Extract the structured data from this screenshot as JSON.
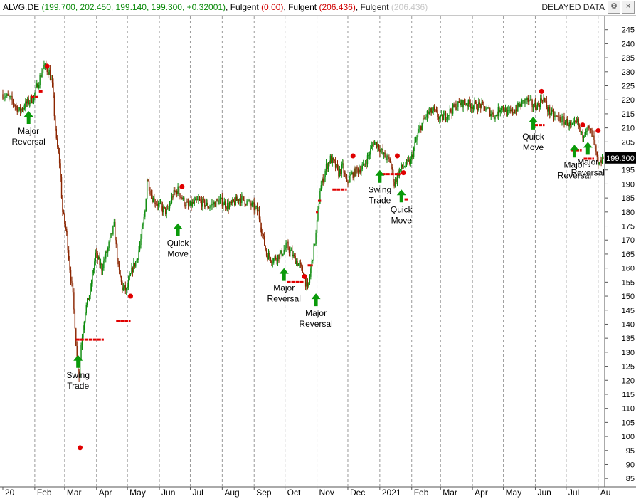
{
  "header": {
    "segments": [
      {
        "text": "ALVG.DE",
        "color": "#000000"
      },
      {
        "text": " (199.700, 202.450, 199.140, 199.300, +0.32001)",
        "color": "#0a8a0a"
      },
      {
        "text": ", Fulgent ",
        "color": "#000000"
      },
      {
        "text": "(0.00)",
        "color": "#d00000"
      },
      {
        "text": ", Fulgent ",
        "color": "#000000"
      },
      {
        "text": "(206.436)",
        "color": "#d00000"
      },
      {
        "text": ", Fulgent ",
        "color": "#000000"
      },
      {
        "text": "(206.436)",
        "color": "#c8c8c8"
      }
    ],
    "status": "DELAYED DATA",
    "settings_glyph": "⚙",
    "close_glyph": "×"
  },
  "chart_data": {
    "type": "candlestick",
    "ylim": [
      82,
      250
    ],
    "yticks": [
      85,
      90,
      95,
      100,
      105,
      110,
      115,
      120,
      125,
      130,
      135,
      140,
      145,
      150,
      155,
      160,
      165,
      170,
      175,
      180,
      185,
      190,
      195,
      200,
      205,
      210,
      215,
      220,
      225,
      230,
      235,
      240,
      245
    ],
    "last_price_label": "199.300",
    "last_price": 199.3,
    "month_labels": [
      {
        "label": "20",
        "day": 0
      },
      {
        "label": "Feb",
        "day": 31
      },
      {
        "label": "Mar",
        "day": 60
      },
      {
        "label": "Apr",
        "day": 91
      },
      {
        "label": "May",
        "day": 121
      },
      {
        "label": "Jun",
        "day": 152
      },
      {
        "label": "Jul",
        "day": 182
      },
      {
        "label": "Aug",
        "day": 213
      },
      {
        "label": "Sep",
        "day": 244
      },
      {
        "label": "Oct",
        "day": 274
      },
      {
        "label": "Nov",
        "day": 305
      },
      {
        "label": "Dec",
        "day": 335
      },
      {
        "label": "2021",
        "day": 366
      },
      {
        "label": "Feb",
        "day": 397
      },
      {
        "label": "Mar",
        "day": 425
      },
      {
        "label": "Apr",
        "day": 456
      },
      {
        "label": "May",
        "day": 486
      },
      {
        "label": "Jun",
        "day": 517
      },
      {
        "label": "Jul",
        "day": 547
      },
      {
        "label": "Au",
        "day": 578
      }
    ],
    "price_path": [
      [
        0,
        222
      ],
      [
        8,
        220
      ],
      [
        16,
        216
      ],
      [
        24,
        219
      ],
      [
        30,
        221
      ],
      [
        36,
        228
      ],
      [
        40,
        232
      ],
      [
        45,
        230
      ],
      [
        48,
        225
      ],
      [
        52,
        205
      ],
      [
        55,
        198
      ],
      [
        58,
        180
      ],
      [
        62,
        172
      ],
      [
        65,
        160
      ],
      [
        68,
        150
      ],
      [
        70,
        140
      ],
      [
        72,
        127
      ],
      [
        74,
        122
      ],
      [
        76,
        133
      ],
      [
        80,
        145
      ],
      [
        85,
        152
      ],
      [
        90,
        165
      ],
      [
        96,
        160
      ],
      [
        102,
        167
      ],
      [
        108,
        175
      ],
      [
        112,
        160
      ],
      [
        116,
        153
      ],
      [
        120,
        152
      ],
      [
        126,
        160
      ],
      [
        130,
        163
      ],
      [
        134,
        170
      ],
      [
        138,
        180
      ],
      [
        140,
        192
      ],
      [
        145,
        185
      ],
      [
        150,
        183
      ],
      [
        155,
        181
      ],
      [
        160,
        180
      ],
      [
        165,
        186
      ],
      [
        170,
        188
      ],
      [
        175,
        184
      ],
      [
        180,
        182
      ],
      [
        190,
        184
      ],
      [
        200,
        182
      ],
      [
        210,
        184
      ],
      [
        220,
        182
      ],
      [
        230,
        185
      ],
      [
        240,
        183
      ],
      [
        248,
        180
      ],
      [
        252,
        172
      ],
      [
        256,
        165
      ],
      [
        262,
        163
      ],
      [
        270,
        165
      ],
      [
        276,
        168
      ],
      [
        282,
        164
      ],
      [
        288,
        161
      ],
      [
        292,
        158
      ],
      [
        296,
        152
      ],
      [
        300,
        162
      ],
      [
        304,
        172
      ],
      [
        308,
        188
      ],
      [
        314,
        196
      ],
      [
        318,
        199
      ],
      [
        322,
        197
      ],
      [
        326,
        194
      ],
      [
        330,
        196
      ],
      [
        334,
        190
      ],
      [
        338,
        193
      ],
      [
        344,
        195
      ],
      [
        350,
        196
      ],
      [
        356,
        201
      ],
      [
        360,
        205
      ],
      [
        364,
        204
      ],
      [
        370,
        200
      ],
      [
        376,
        198
      ],
      [
        380,
        190
      ],
      [
        384,
        194
      ],
      [
        388,
        196
      ],
      [
        392,
        197
      ],
      [
        396,
        198
      ],
      [
        400,
        204
      ],
      [
        405,
        210
      ],
      [
        412,
        215
      ],
      [
        418,
        216
      ],
      [
        425,
        213
      ],
      [
        432,
        215
      ],
      [
        440,
        218
      ],
      [
        448,
        219
      ],
      [
        456,
        218
      ],
      [
        464,
        218
      ],
      [
        472,
        216
      ],
      [
        478,
        214
      ],
      [
        484,
        218
      ],
      [
        490,
        215
      ],
      [
        496,
        216
      ],
      [
        502,
        218
      ],
      [
        508,
        220
      ],
      [
        514,
        218
      ],
      [
        520,
        218
      ],
      [
        524,
        221
      ],
      [
        530,
        216
      ],
      [
        536,
        214
      ],
      [
        542,
        213
      ],
      [
        548,
        212
      ],
      [
        552,
        210
      ],
      [
        558,
        212
      ],
      [
        562,
        207
      ],
      [
        566,
        210
      ],
      [
        570,
        209
      ],
      [
        574,
        205
      ],
      [
        578,
        196
      ],
      [
        583,
        199.3
      ]
    ],
    "stop_levels": [
      {
        "x0": 27,
        "x1": 34,
        "price": 221
      },
      {
        "x0": 35,
        "x1": 39,
        "price": 223
      },
      {
        "x0": 71,
        "x1": 98,
        "price": 134.5
      },
      {
        "x0": 110,
        "x1": 124,
        "price": 141
      },
      {
        "x0": 276,
        "x1": 292,
        "price": 155
      },
      {
        "x0": 296,
        "x1": 301,
        "price": 161
      },
      {
        "x0": 304,
        "x1": 306,
        "price": 180
      },
      {
        "x0": 306,
        "x1": 309,
        "price": 184
      },
      {
        "x0": 320,
        "x1": 334,
        "price": 188
      },
      {
        "x0": 368,
        "x1": 386,
        "price": 193.5
      },
      {
        "x0": 390,
        "x1": 394,
        "price": 184.5
      },
      {
        "x0": 516,
        "x1": 526,
        "price": 211
      },
      {
        "x0": 552,
        "x1": 562,
        "price": 202
      },
      {
        "x0": 564,
        "x1": 574,
        "price": 199
      }
    ],
    "red_dots": [
      {
        "x": 43,
        "price": 232
      },
      {
        "x": 75,
        "price": 96
      },
      {
        "x": 124,
        "price": 150
      },
      {
        "x": 174,
        "price": 189
      },
      {
        "x": 293,
        "price": 157
      },
      {
        "x": 340,
        "price": 200
      },
      {
        "x": 383,
        "price": 200
      },
      {
        "x": 389,
        "price": 194
      },
      {
        "x": 523,
        "price": 223
      },
      {
        "x": 563,
        "price": 211
      },
      {
        "x": 578,
        "price": 209
      }
    ],
    "signals": [
      {
        "x": 25,
        "price": 216,
        "lines": [
          "Major",
          "Reversal"
        ]
      },
      {
        "x": 73,
        "price": 129,
        "lines": [
          "Swing",
          "Trade"
        ]
      },
      {
        "x": 170,
        "price": 176,
        "lines": [
          "Quick",
          "Move"
        ]
      },
      {
        "x": 273,
        "price": 160,
        "lines": [
          "Major",
          "Reversal"
        ]
      },
      {
        "x": 304,
        "price": 151,
        "lines": [
          "Major",
          "Reversal"
        ]
      },
      {
        "x": 366,
        "price": 195,
        "lines": [
          "Swing",
          "Trade"
        ]
      },
      {
        "x": 387,
        "price": 188,
        "lines": [
          "Quick",
          "Move"
        ]
      },
      {
        "x": 515,
        "price": 214,
        "lines": [
          "Quick",
          "Move"
        ]
      },
      {
        "x": 555,
        "price": 204,
        "lines": [
          "Major",
          "Reversal"
        ]
      },
      {
        "x": 568,
        "price": 205,
        "lines": [
          "Major",
          "Reversal"
        ]
      }
    ],
    "up_color": "#0a8a0a",
    "down_color": "#8b2500",
    "signal_color": "#0a9a0a",
    "stop_color": "#e00000"
  }
}
